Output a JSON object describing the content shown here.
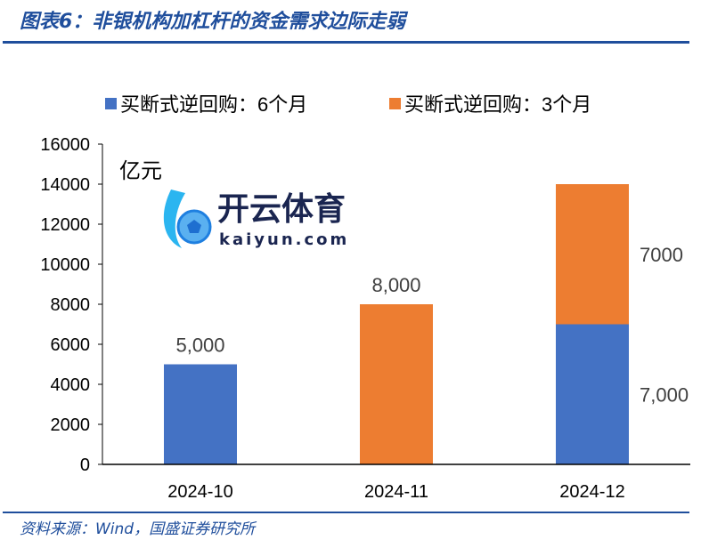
{
  "title": "图表6：非银机构加杠杆的资金需求边际走弱",
  "source": "资料来源：Wind，国盛证券研究所",
  "watermark": {
    "brand_cn": "开云体育",
    "brand_en": "kaiyun.com"
  },
  "colors": {
    "blue": "#4472c4",
    "orange": "#ed7d31",
    "accent": "#1f4e9c"
  },
  "chart_data": {
    "type": "bar",
    "stacked": true,
    "title": "图表6：非银机构加杠杆的资金需求边际走弱",
    "ylabel": "亿元",
    "ylim": [
      0,
      16000
    ],
    "yticks": [
      0,
      2000,
      4000,
      6000,
      8000,
      10000,
      12000,
      14000,
      16000
    ],
    "ytick_labels": [
      "0",
      "2000",
      "4000",
      "6000",
      "8000",
      "10000",
      "12000",
      "14000",
      "16000"
    ],
    "categories": [
      "2024-10",
      "2024-11",
      "2024-12"
    ],
    "legend_position": "top",
    "series": [
      {
        "name": "买断式逆回购：6个月",
        "color": "#4472c4",
        "values": [
          5000,
          0,
          7000
        ],
        "labels": [
          "5,000",
          "",
          "7,000"
        ]
      },
      {
        "name": "买断式逆回购：3个月",
        "color": "#ed7d31",
        "values": [
          0,
          8000,
          7000
        ],
        "labels": [
          "",
          "8,000",
          "7000"
        ]
      }
    ]
  }
}
